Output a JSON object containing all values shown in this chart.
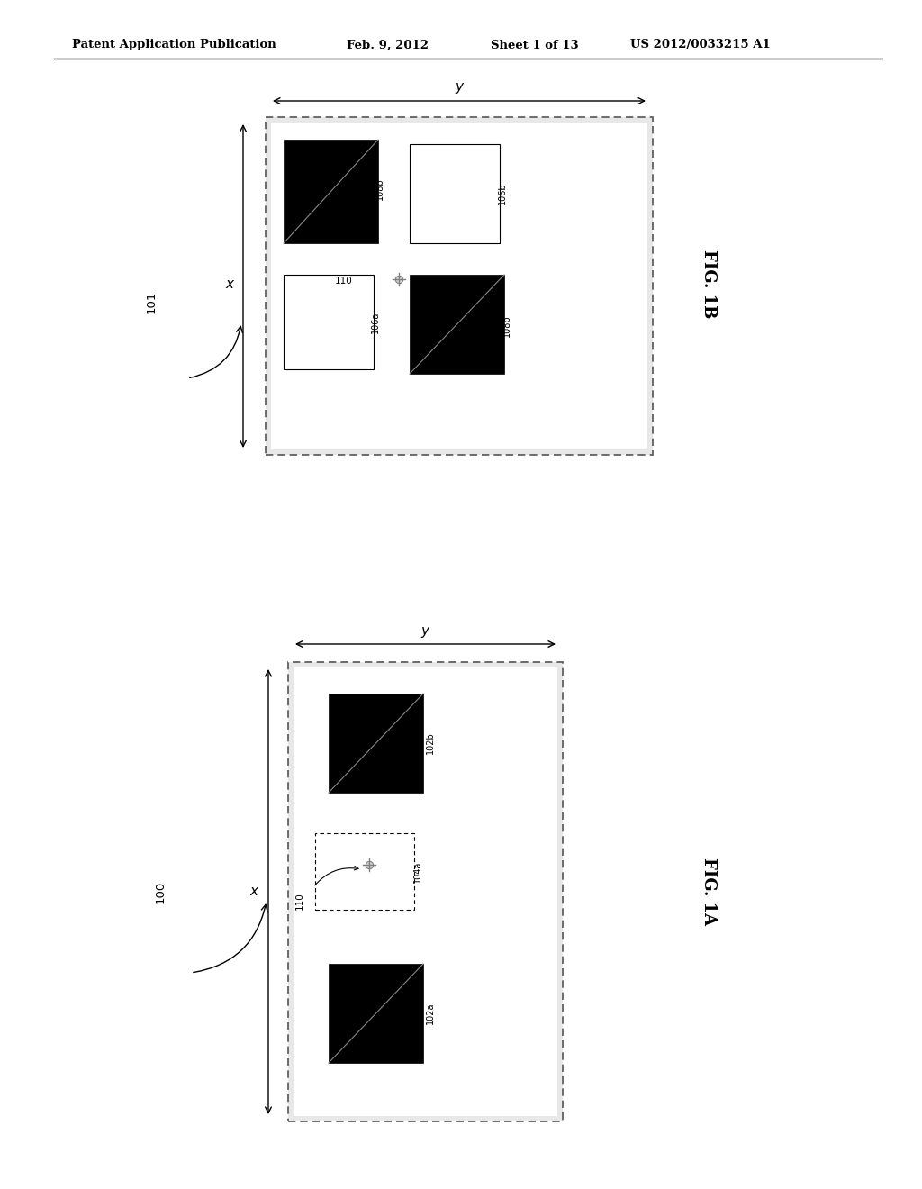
{
  "bg_color": "#ffffff",
  "header_text": "Patent Application Publication",
  "header_date": "Feb. 9, 2012",
  "header_sheet": "Sheet 1 of 13",
  "header_patent": "US 2012/0033215 A1",
  "fig1b_label": "FIG. 1B",
  "fig1a_label": "FIG. 1A",
  "ref_101": "101",
  "ref_100": "100",
  "label_x": "x",
  "label_y": "y",
  "label_110": "110",
  "labels_fig1b": [
    "108b",
    "106b",
    "106a",
    "108b"
  ],
  "labels_fig1a": [
    "102b",
    "104a",
    "102a"
  ],
  "line_color": "#555555",
  "black_fill": "#000000",
  "white_fill": "#ffffff",
  "gray_diag": "#888888"
}
